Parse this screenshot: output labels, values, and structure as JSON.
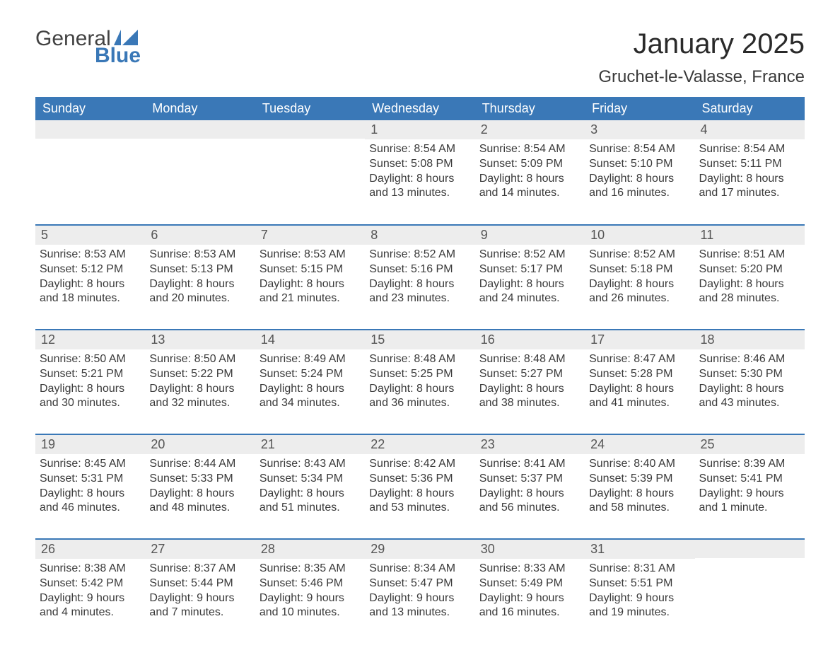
{
  "logo": {
    "text1": "General",
    "text2": "Blue"
  },
  "title": "January 2025",
  "location": "Gruchet-le-Valasse, France",
  "colors": {
    "header_bg": "#3a78b7",
    "header_fg": "#ffffff",
    "daynum_bg": "#ededed",
    "row_separator": "#3a78b7",
    "text": "#3a3a3a",
    "logo_blue": "#3a78b7",
    "background": "#ffffff"
  },
  "typography": {
    "title_fontsize": 40,
    "location_fontsize": 24,
    "th_fontsize": 18,
    "daynum_fontsize": 18,
    "cell_fontsize": 16,
    "font_family": "Arial"
  },
  "weekdays": [
    "Sunday",
    "Monday",
    "Tuesday",
    "Wednesday",
    "Thursday",
    "Friday",
    "Saturday"
  ],
  "weeks": [
    [
      {
        "day": "",
        "sunrise": "",
        "sunset": "",
        "daylight": ""
      },
      {
        "day": "",
        "sunrise": "",
        "sunset": "",
        "daylight": ""
      },
      {
        "day": "",
        "sunrise": "",
        "sunset": "",
        "daylight": ""
      },
      {
        "day": "1",
        "sunrise": "Sunrise: 8:54 AM",
        "sunset": "Sunset: 5:08 PM",
        "daylight": "Daylight: 8 hours and 13 minutes."
      },
      {
        "day": "2",
        "sunrise": "Sunrise: 8:54 AM",
        "sunset": "Sunset: 5:09 PM",
        "daylight": "Daylight: 8 hours and 14 minutes."
      },
      {
        "day": "3",
        "sunrise": "Sunrise: 8:54 AM",
        "sunset": "Sunset: 5:10 PM",
        "daylight": "Daylight: 8 hours and 16 minutes."
      },
      {
        "day": "4",
        "sunrise": "Sunrise: 8:54 AM",
        "sunset": "Sunset: 5:11 PM",
        "daylight": "Daylight: 8 hours and 17 minutes."
      }
    ],
    [
      {
        "day": "5",
        "sunrise": "Sunrise: 8:53 AM",
        "sunset": "Sunset: 5:12 PM",
        "daylight": "Daylight: 8 hours and 18 minutes."
      },
      {
        "day": "6",
        "sunrise": "Sunrise: 8:53 AM",
        "sunset": "Sunset: 5:13 PM",
        "daylight": "Daylight: 8 hours and 20 minutes."
      },
      {
        "day": "7",
        "sunrise": "Sunrise: 8:53 AM",
        "sunset": "Sunset: 5:15 PM",
        "daylight": "Daylight: 8 hours and 21 minutes."
      },
      {
        "day": "8",
        "sunrise": "Sunrise: 8:52 AM",
        "sunset": "Sunset: 5:16 PM",
        "daylight": "Daylight: 8 hours and 23 minutes."
      },
      {
        "day": "9",
        "sunrise": "Sunrise: 8:52 AM",
        "sunset": "Sunset: 5:17 PM",
        "daylight": "Daylight: 8 hours and 24 minutes."
      },
      {
        "day": "10",
        "sunrise": "Sunrise: 8:52 AM",
        "sunset": "Sunset: 5:18 PM",
        "daylight": "Daylight: 8 hours and 26 minutes."
      },
      {
        "day": "11",
        "sunrise": "Sunrise: 8:51 AM",
        "sunset": "Sunset: 5:20 PM",
        "daylight": "Daylight: 8 hours and 28 minutes."
      }
    ],
    [
      {
        "day": "12",
        "sunrise": "Sunrise: 8:50 AM",
        "sunset": "Sunset: 5:21 PM",
        "daylight": "Daylight: 8 hours and 30 minutes."
      },
      {
        "day": "13",
        "sunrise": "Sunrise: 8:50 AM",
        "sunset": "Sunset: 5:22 PM",
        "daylight": "Daylight: 8 hours and 32 minutes."
      },
      {
        "day": "14",
        "sunrise": "Sunrise: 8:49 AM",
        "sunset": "Sunset: 5:24 PM",
        "daylight": "Daylight: 8 hours and 34 minutes."
      },
      {
        "day": "15",
        "sunrise": "Sunrise: 8:48 AM",
        "sunset": "Sunset: 5:25 PM",
        "daylight": "Daylight: 8 hours and 36 minutes."
      },
      {
        "day": "16",
        "sunrise": "Sunrise: 8:48 AM",
        "sunset": "Sunset: 5:27 PM",
        "daylight": "Daylight: 8 hours and 38 minutes."
      },
      {
        "day": "17",
        "sunrise": "Sunrise: 8:47 AM",
        "sunset": "Sunset: 5:28 PM",
        "daylight": "Daylight: 8 hours and 41 minutes."
      },
      {
        "day": "18",
        "sunrise": "Sunrise: 8:46 AM",
        "sunset": "Sunset: 5:30 PM",
        "daylight": "Daylight: 8 hours and 43 minutes."
      }
    ],
    [
      {
        "day": "19",
        "sunrise": "Sunrise: 8:45 AM",
        "sunset": "Sunset: 5:31 PM",
        "daylight": "Daylight: 8 hours and 46 minutes."
      },
      {
        "day": "20",
        "sunrise": "Sunrise: 8:44 AM",
        "sunset": "Sunset: 5:33 PM",
        "daylight": "Daylight: 8 hours and 48 minutes."
      },
      {
        "day": "21",
        "sunrise": "Sunrise: 8:43 AM",
        "sunset": "Sunset: 5:34 PM",
        "daylight": "Daylight: 8 hours and 51 minutes."
      },
      {
        "day": "22",
        "sunrise": "Sunrise: 8:42 AM",
        "sunset": "Sunset: 5:36 PM",
        "daylight": "Daylight: 8 hours and 53 minutes."
      },
      {
        "day": "23",
        "sunrise": "Sunrise: 8:41 AM",
        "sunset": "Sunset: 5:37 PM",
        "daylight": "Daylight: 8 hours and 56 minutes."
      },
      {
        "day": "24",
        "sunrise": "Sunrise: 8:40 AM",
        "sunset": "Sunset: 5:39 PM",
        "daylight": "Daylight: 8 hours and 58 minutes."
      },
      {
        "day": "25",
        "sunrise": "Sunrise: 8:39 AM",
        "sunset": "Sunset: 5:41 PM",
        "daylight": "Daylight: 9 hours and 1 minute."
      }
    ],
    [
      {
        "day": "26",
        "sunrise": "Sunrise: 8:38 AM",
        "sunset": "Sunset: 5:42 PM",
        "daylight": "Daylight: 9 hours and 4 minutes."
      },
      {
        "day": "27",
        "sunrise": "Sunrise: 8:37 AM",
        "sunset": "Sunset: 5:44 PM",
        "daylight": "Daylight: 9 hours and 7 minutes."
      },
      {
        "day": "28",
        "sunrise": "Sunrise: 8:35 AM",
        "sunset": "Sunset: 5:46 PM",
        "daylight": "Daylight: 9 hours and 10 minutes."
      },
      {
        "day": "29",
        "sunrise": "Sunrise: 8:34 AM",
        "sunset": "Sunset: 5:47 PM",
        "daylight": "Daylight: 9 hours and 13 minutes."
      },
      {
        "day": "30",
        "sunrise": "Sunrise: 8:33 AM",
        "sunset": "Sunset: 5:49 PM",
        "daylight": "Daylight: 9 hours and 16 minutes."
      },
      {
        "day": "31",
        "sunrise": "Sunrise: 8:31 AM",
        "sunset": "Sunset: 5:51 PM",
        "daylight": "Daylight: 9 hours and 19 minutes."
      },
      {
        "day": "",
        "sunrise": "",
        "sunset": "",
        "daylight": ""
      }
    ]
  ]
}
